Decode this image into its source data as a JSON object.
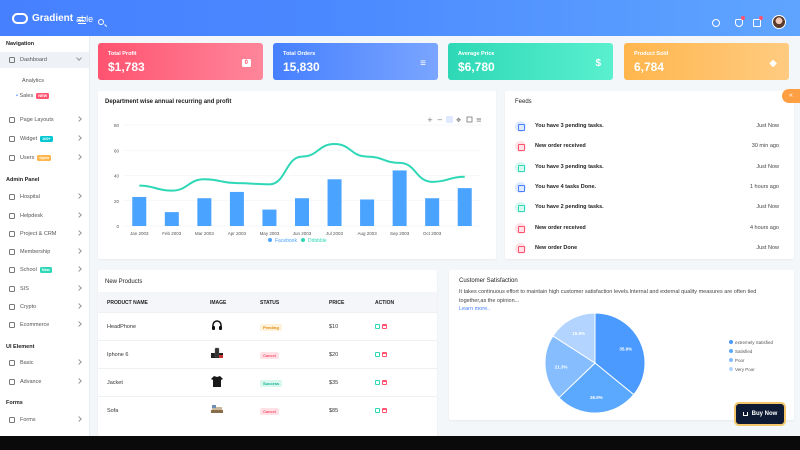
{
  "header": {
    "logo_bold": "Gradient",
    "logo_light": "able"
  },
  "sidebar": {
    "sections": {
      "navigation": "Navigation",
      "admin_panel": "Admin Panel",
      "ui_element": "UI Element",
      "forms": "Forms"
    },
    "dashboard": "Dashboard",
    "analytics": "Analytics",
    "sales": "Sales",
    "sales_badge": "NEW",
    "page_layouts": "Page Layouts",
    "widget": "Widget",
    "widget_badge": "100+",
    "users": "Users",
    "users_badge": "Open",
    "hospital": "Hospital",
    "helpdesk": "Helpdesk",
    "project_crm": "Project & CRM",
    "membership": "Membership",
    "school": "School",
    "school_badge": "New",
    "sis": "SIS",
    "crypto": "Crypto",
    "ecommerce": "Ecommerce",
    "basic": "Basic",
    "advance": "Advance",
    "forms_item": "Forms"
  },
  "stats": [
    {
      "label": "Total Profit",
      "value": "$1,783",
      "color": "#ff5370"
    },
    {
      "label": "Total Orders",
      "value": "15,830",
      "color": "#4680ff"
    },
    {
      "label": "Average Price",
      "value": "$6,780",
      "color": "#2ed8b6"
    },
    {
      "label": "Product Sold",
      "value": "6,784",
      "color": "#ffb64d"
    }
  ],
  "chart_title": "Department wise annual recurring and profit",
  "chart_data": {
    "type": "bar",
    "title": "Department wise annual recurring and profit",
    "categories": [
      "Jan 2003",
      "Feb 2003",
      "Mar 2003",
      "Apr 2003",
      "May 2003",
      "Jun 2003",
      "Jul 2003",
      "Aug 2003",
      "Sep 2003",
      "Oct 2003",
      "Nov 2003"
    ],
    "tick_labels": [
      "Jan 2003",
      "Feb 2003",
      "Mar 2003",
      "Apr 2003",
      "May 2003",
      "Jun 2003",
      "Jul 2003",
      "Aug 2003",
      "Sep 2003",
      "Oct 2003"
    ],
    "ylim": [
      0,
      80
    ],
    "yticks": [
      0,
      20,
      40,
      60,
      80
    ],
    "grid": true,
    "legend": "bottom-center",
    "series": [
      {
        "name": "Facebook",
        "type": "bar",
        "color": "#4aa3ff",
        "values": [
          23,
          11,
          22,
          27,
          13,
          22,
          37,
          21,
          44,
          22,
          30
        ]
      },
      {
        "name": "Dribbble",
        "type": "line",
        "color": "#2ed8b6",
        "values": [
          32,
          28,
          37,
          34,
          33,
          55,
          65,
          55,
          50,
          35,
          39
        ]
      }
    ]
  },
  "feeds": {
    "title": "Feeds",
    "items": [
      {
        "text": "You have 3 pending tasks.",
        "time": "Just Now",
        "kind": "blue"
      },
      {
        "text": "New order received",
        "time": "30 min ago",
        "kind": "red"
      },
      {
        "text": "You have 3 pending tasks.",
        "time": "Just Now",
        "kind": "green"
      },
      {
        "text": "You have 4 tasks Done.",
        "time": "1 hours ago",
        "kind": "blue"
      },
      {
        "text": "You have 2 pending tasks.",
        "time": "Just Now",
        "kind": "green"
      },
      {
        "text": "New order received",
        "time": "4 hours ago",
        "kind": "red"
      },
      {
        "text": "New order Done",
        "time": "Just Now",
        "kind": "red"
      }
    ]
  },
  "products": {
    "title": "New Products",
    "columns": [
      "PRODUCT NAME",
      "IMAGE",
      "STATUS",
      "PRICE",
      "ACTION"
    ],
    "rows": [
      {
        "name": "HeadPhone",
        "status": "Pending",
        "status_kind": "pend",
        "price": "$10",
        "image": "headphone-icon"
      },
      {
        "name": "Iphone 6",
        "status": "Cancel",
        "status_kind": "cancel",
        "price": "$20",
        "image": "phone-icon"
      },
      {
        "name": "Jacket",
        "status": "Success",
        "status_kind": "succ",
        "price": "$35",
        "image": "jacket-icon"
      },
      {
        "name": "Sofa",
        "status": "Cancel",
        "status_kind": "cancel",
        "price": "$85",
        "image": "sofa-icon"
      }
    ]
  },
  "satisfaction": {
    "title": "Customer Satisfaction",
    "text": "It takes continuous effort to maintain high customer satisfaction levels.Internal and external quality measures are often tied together,as the opinion...",
    "link": "Learn more..",
    "pie": {
      "type": "pie",
      "labels": [
        "extremely Satisfied",
        "Satisfied",
        "Poor",
        "Very Poor"
      ],
      "values": [
        35.9,
        26.9,
        21.3,
        15.9
      ],
      "value_labels": [
        "35.9%",
        "26.9%",
        "21.3%",
        "15.9%"
      ],
      "colors": [
        "#4a9aff",
        "#5ba8ff",
        "#86bdff",
        "#b3d4ff"
      ],
      "legend": "right"
    }
  },
  "buy_now": "Buy Now"
}
